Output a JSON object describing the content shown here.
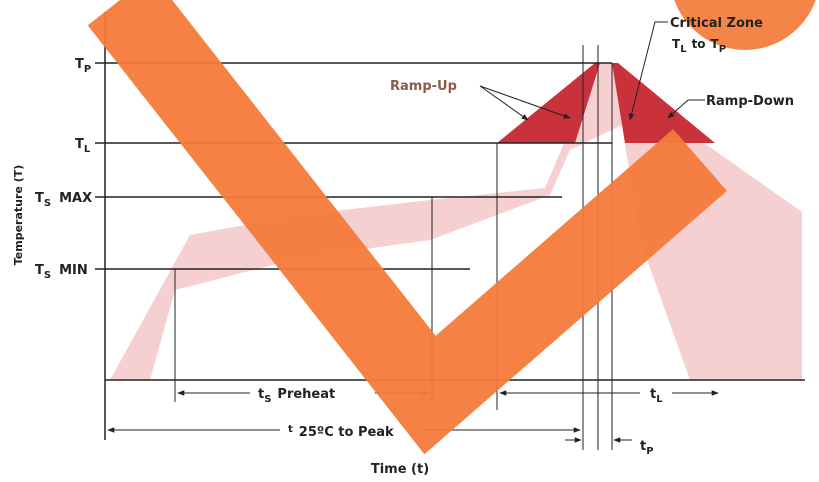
{
  "y_axis_label": "Temperature (T)",
  "x_axis_label": "Time (t)",
  "levels": {
    "tp": {
      "main": "T",
      "sub": "P"
    },
    "tl": {
      "main": "T",
      "sub": "L"
    },
    "ts_max": {
      "main": "T",
      "sub": "S",
      "suffix": "MAX"
    },
    "ts_min": {
      "main": "T",
      "sub": "S",
      "suffix": "MIN"
    }
  },
  "annotations": {
    "ramp_up": "Ramp-Up",
    "ramp_down": "Ramp-Down",
    "critical_zone": "Critical Zone",
    "critical_range": {
      "from_main": "T",
      "from_sub": "L",
      "to": "to",
      "to_main": "T",
      "to_sub": "P"
    }
  },
  "durations": {
    "preheat": {
      "main": "t",
      "sub": "S",
      "suffix": "Preheat"
    },
    "tl": {
      "main": "t",
      "sub": "L"
    },
    "tp": {
      "main": "t",
      "sub": "P"
    },
    "to_peak": {
      "main": "t",
      "suffix": "25ºC to Peak"
    }
  }
}
